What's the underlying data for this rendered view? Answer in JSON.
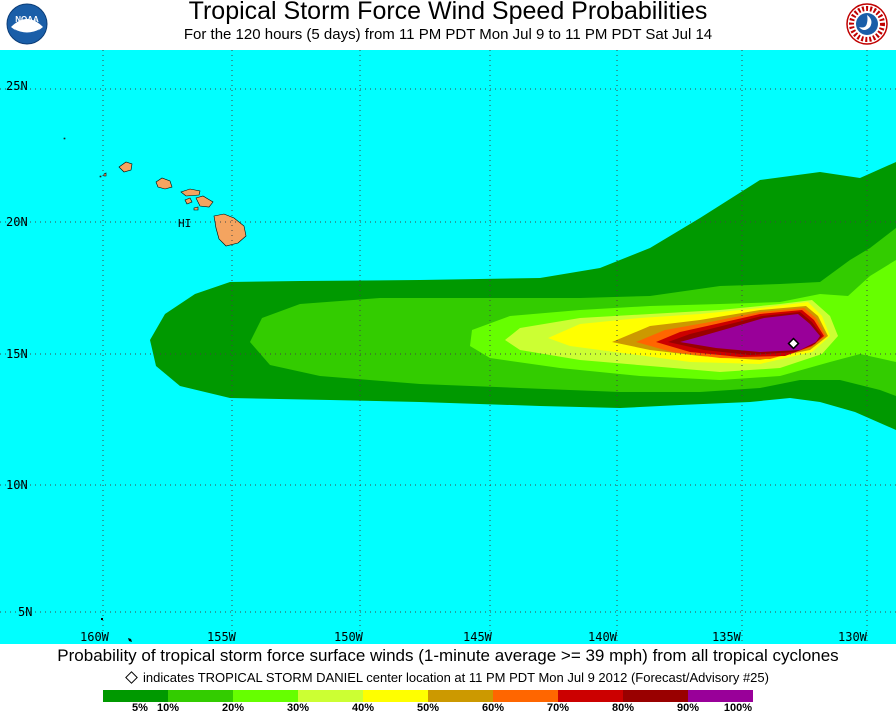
{
  "header": {
    "title": "Tropical Storm Force Wind Speed Probabilities",
    "subtitle": "For the 120 hours (5 days) from 11 PM PDT Mon Jul 9 to 11 PM PDT Sat Jul 14",
    "left_logo": "noaa-logo",
    "right_logo": "national-weather-service-logo",
    "right_logo_text": "NATIONAL WEATHER SERVICE"
  },
  "map": {
    "ocean_color": "#00ffff",
    "land_color": "#f4a460",
    "lat_labels": [
      "25N",
      "20N",
      "15N",
      "10N",
      "5N"
    ],
    "lon_labels": [
      "160W",
      "155W",
      "150W",
      "145W",
      "140W",
      "135W",
      "130W"
    ],
    "place_label": "HI",
    "storm_marker": "diamond-icon"
  },
  "footer": {
    "description": "Probability of tropical storm force surface winds (1-minute average >= 39 mph) from all tropical cyclones",
    "indicator_text": "indicates TROPICAL STORM DANIEL center location at 11 PM PDT Mon Jul 9 2012 (Forecast/Advisory #25)"
  },
  "legend": {
    "colors": [
      "#009900",
      "#33cc00",
      "#66ff00",
      "#ccff33",
      "#ffff00",
      "#cc9900",
      "#ff6600",
      "#cc0000",
      "#990000",
      "#990099"
    ],
    "labels": [
      "5%",
      "10%",
      "20%",
      "30%",
      "40%",
      "50%",
      "60%",
      "70%",
      "80%",
      "90%",
      "100%"
    ]
  }
}
